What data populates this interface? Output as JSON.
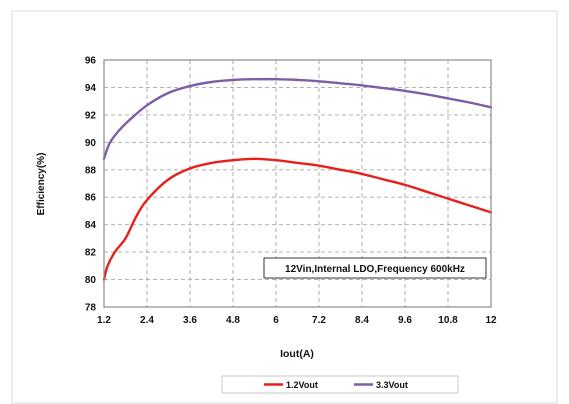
{
  "chart_data": {
    "type": "line",
    "title": "",
    "xlabel": "Iout(A)",
    "ylabel": "Efficiency(%)",
    "xlim": [
      1.2,
      12
    ],
    "ylim": [
      78,
      96
    ],
    "x_ticks": [
      "1.2",
      "2.4",
      "3.6",
      "4.8",
      "6",
      "7.2",
      "8.4",
      "9.6",
      "10.8",
      "12"
    ],
    "y_ticks": [
      "78",
      "80",
      "82",
      "84",
      "86",
      "88",
      "90",
      "92",
      "94",
      "96"
    ],
    "grid": true,
    "annotation": "12Vin,Internal LDO,Frequency 600kHz",
    "legend_position": "bottom",
    "series": [
      {
        "name": "1.2Vout",
        "color": "#e8201c",
        "x": [
          1.2,
          1.3,
          1.5,
          1.8,
          2.1,
          2.4,
          3.0,
          3.6,
          4.2,
          4.8,
          5.4,
          6.0,
          6.6,
          7.2,
          7.8,
          8.4,
          9.0,
          9.6,
          10.2,
          10.8,
          11.4,
          12.0
        ],
        "y": [
          80.0,
          81.0,
          82.0,
          83.0,
          84.6,
          85.8,
          87.3,
          88.1,
          88.5,
          88.7,
          88.8,
          88.7,
          88.5,
          88.3,
          88.0,
          87.7,
          87.3,
          86.9,
          86.4,
          85.9,
          85.4,
          84.9
        ]
      },
      {
        "name": "3.3Vout",
        "color": "#7b5ea7",
        "x": [
          1.2,
          1.35,
          1.6,
          1.9,
          2.4,
          3.0,
          3.6,
          4.2,
          4.8,
          5.4,
          6.0,
          6.6,
          7.2,
          7.8,
          8.4,
          9.0,
          9.6,
          10.2,
          10.8,
          11.4,
          12.0
        ],
        "y": [
          88.8,
          89.9,
          90.8,
          91.6,
          92.7,
          93.6,
          94.1,
          94.4,
          94.55,
          94.6,
          94.6,
          94.55,
          94.45,
          94.3,
          94.15,
          93.95,
          93.75,
          93.5,
          93.2,
          92.9,
          92.55
        ]
      }
    ]
  }
}
